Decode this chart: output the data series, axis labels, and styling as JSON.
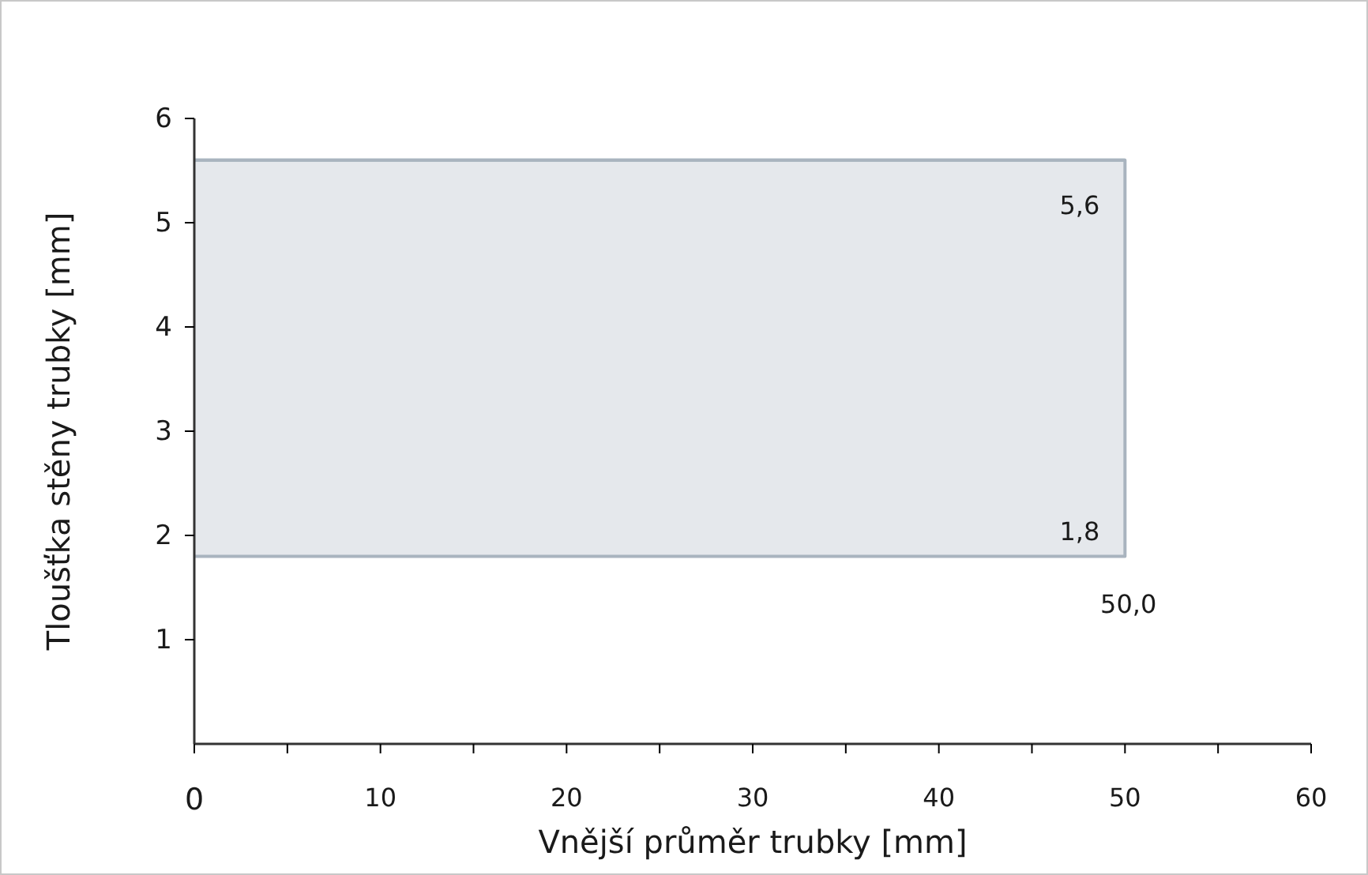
{
  "chart_data": {
    "type": "line",
    "xlabel": "Vnější průměr trubky [mm]",
    "ylabel": "Tloušťka stěny trubky  [mm]",
    "xlim": [
      0,
      60
    ],
    "ylim": [
      0,
      6
    ],
    "xticks": [
      0,
      {
        "value": 5,
        "label": null
      },
      10,
      {
        "value": 15,
        "label": null
      },
      20,
      {
        "value": 25,
        "label": null
      },
      30,
      {
        "value": 35,
        "label": null
      },
      40,
      {
        "value": 45,
        "label": null
      },
      50,
      {
        "value": 55,
        "label": null
      },
      60
    ],
    "yticks": [
      1,
      2,
      3,
      4,
      5,
      6
    ],
    "series": [
      {
        "color": "#a9b4bf",
        "x": [
          0,
          50
        ],
        "values": [
          5.6,
          5.6
        ],
        "lower": [
          1.8,
          1.8
        ],
        "upper": [
          5.6,
          5.6
        ]
      }
    ],
    "annotations": [
      {
        "text": "5,6",
        "y": 5.6
      },
      {
        "text": "1,8",
        "y": 1.8
      },
      {
        "text": "50,0",
        "y": 1.8
      }
    ],
    "grid": false
  }
}
